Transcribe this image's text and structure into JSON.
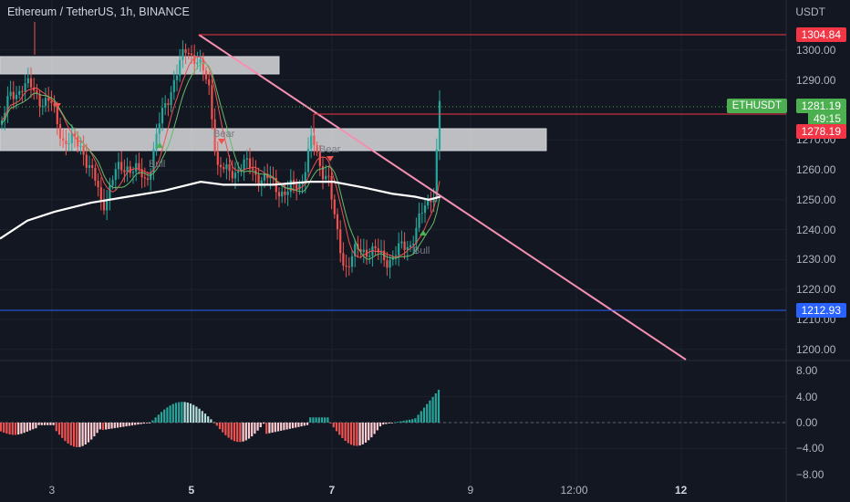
{
  "header": {
    "title": "Ethereum / TetherUS, 1h, BINANCE"
  },
  "price_axis": {
    "unit": "USDT",
    "ticks": [
      "1300.00",
      "1290.00",
      "1270.00",
      "1260.00",
      "1250.00",
      "1240.00",
      "1230.00",
      "1220.00",
      "1210.00",
      "1200.00"
    ]
  },
  "osc_axis": {
    "ticks": [
      "8.00",
      "4.00",
      "0.00",
      "−4.00",
      "−8.00"
    ]
  },
  "time_axis": [
    {
      "label": "3",
      "bold": false
    },
    {
      "label": "5",
      "bold": true
    },
    {
      "label": "7",
      "bold": true
    },
    {
      "label": "9",
      "bold": false
    },
    {
      "label": "12:00",
      "bold": false
    },
    {
      "label": "12",
      "bold": true
    }
  ],
  "tags": {
    "resistance": "1304.84",
    "symbol": "ETHUSDT",
    "last_price": "1281.19",
    "countdown": "49:15",
    "level": "1278.19",
    "support": "1212.93"
  },
  "annotations": {
    "bear1": "Bear",
    "bear2": "Bear",
    "bull1": "Bull",
    "bull2": "Bull"
  },
  "colors": {
    "up": "#26a69a",
    "down": "#ef5350",
    "trendline": "#f48fb1",
    "support": "#2962ff",
    "resistance": "#f23645",
    "symbol": "#4caf50"
  }
}
